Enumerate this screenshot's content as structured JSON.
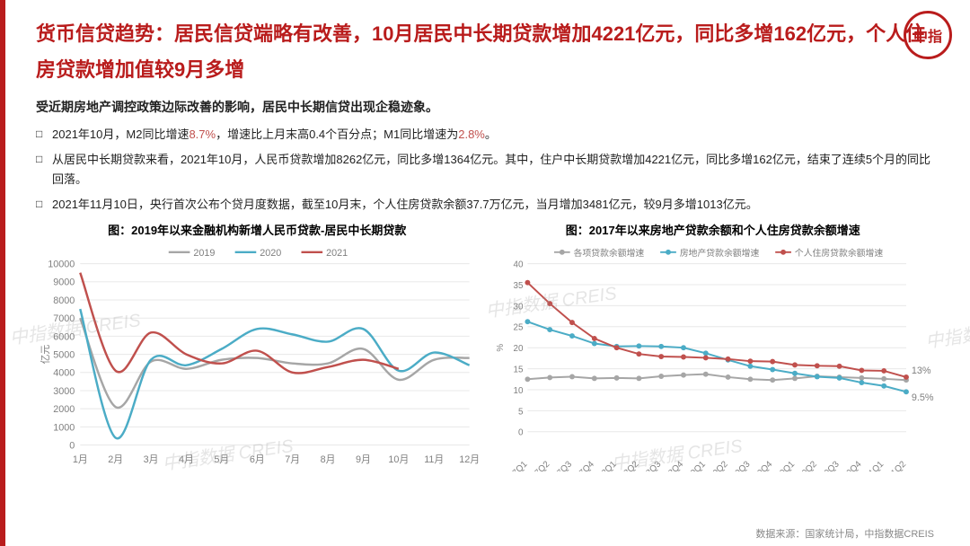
{
  "title": "货币信贷趋势：居民信贷端略有改善，10月居民中长期贷款增加4221亿元，同比多增162亿元，个人住房贷款增加值较9月多增",
  "subtitle": "受近期房地产调控政策边际改善的影响，居民中长期信贷出现企稳迹象。",
  "bullets": [
    {
      "pre": "2021年10月，M2同比增速",
      "hl1": "8.7%",
      "mid": "，增速比上月末高0.4个百分点；M1同比增速为",
      "hl2": "2.8%",
      "post": "。"
    },
    {
      "text": "从居民中长期贷款来看，2021年10月，人民币贷款增加8262亿元，同比多增1364亿元。其中，住户中长期贷款增加4221亿元，同比多增162亿元，结束了连续5个月的同比回落。"
    },
    {
      "text": "2021年11月10日，央行首次公布个贷月度数据，截至10月末，个人住房贷款余额37.7万亿元，当月增加3481亿元，较9月多增1013亿元。"
    }
  ],
  "chart1": {
    "title": "图：2019年以来金融机构新增人民币贷款-居民中长期贷款",
    "legend": [
      "2019",
      "2020",
      "2021"
    ],
    "colors": {
      "2019": "#a6a6a6",
      "2020": "#4bacc6",
      "2021": "#c0504d",
      "grid": "#e8e8e8",
      "axis": "#bfbfbf",
      "text": "#7f7f7f"
    },
    "xlabels": [
      "1月",
      "2月",
      "3月",
      "4月",
      "5月",
      "6月",
      "7月",
      "8月",
      "9月",
      "10月",
      "11月",
      "12月"
    ],
    "ylabel": "亿元",
    "ylim": [
      0,
      10000
    ],
    "ystep": 1000,
    "series": {
      "2019": [
        7000,
        2100,
        4600,
        4200,
        4700,
        4800,
        4500,
        4500,
        5300,
        3600,
        4700,
        4800
      ],
      "2020": [
        7500,
        400,
        4700,
        4400,
        5300,
        6400,
        6100,
        5700,
        6400,
        4100,
        5100,
        4400
      ],
      "2021": [
        9500,
        4100,
        6200,
        5000,
        4500,
        5200,
        4000,
        4300,
        4700,
        4200,
        null,
        null
      ]
    },
    "line_width": 2.5,
    "font_size_axis": 11
  },
  "chart2": {
    "title": "图：2017年以来房地产贷款余额和个人住房贷款余额增速",
    "legend": [
      "各项贷款余额增速",
      "房地产贷款余额增速",
      "个人住房贷款余额增速"
    ],
    "colors": {
      "s1": "#a6a6a6",
      "s2": "#4bacc6",
      "s3": "#c0504d",
      "grid": "#e8e8e8",
      "axis": "#bfbfbf",
      "text": "#7f7f7f"
    },
    "xlabels": [
      "17Q1",
      "17Q2",
      "17Q3",
      "17Q4",
      "18Q1",
      "18Q2",
      "18Q3",
      "18Q4",
      "19Q1",
      "19Q2",
      "19Q3",
      "19Q4",
      "20Q1",
      "20Q2",
      "20Q3",
      "20Q4",
      "21Q1",
      "21Q2"
    ],
    "ylabel": "%",
    "ylim": [
      0,
      40
    ],
    "ystep": 5,
    "series": {
      "s1": [
        12.5,
        12.9,
        13.1,
        12.7,
        12.8,
        12.7,
        13.2,
        13.5,
        13.7,
        13.0,
        12.5,
        12.3,
        12.7,
        13.2,
        13.0,
        12.8,
        12.6,
        12.3
      ],
      "s2": [
        26.2,
        24.3,
        22.8,
        21.0,
        20.3,
        20.4,
        20.3,
        20.0,
        18.7,
        17.1,
        15.6,
        14.8,
        13.9,
        13.1,
        12.8,
        11.7,
        10.9,
        9.5
      ],
      "s3": [
        35.5,
        30.5,
        26.0,
        22.2,
        20.0,
        18.5,
        17.9,
        17.8,
        17.6,
        17.3,
        16.8,
        16.7,
        15.9,
        15.7,
        15.6,
        14.6,
        14.5,
        13.0
      ]
    },
    "end_labels": {
      "s3": "13%",
      "s2": "9.5%"
    },
    "line_width": 2,
    "marker_radius": 3,
    "font_size_axis": 10
  },
  "source": "数据来源：国家统计局，中指数据CREIS",
  "watermark": "中指数据 CREIS",
  "logo": "中指"
}
